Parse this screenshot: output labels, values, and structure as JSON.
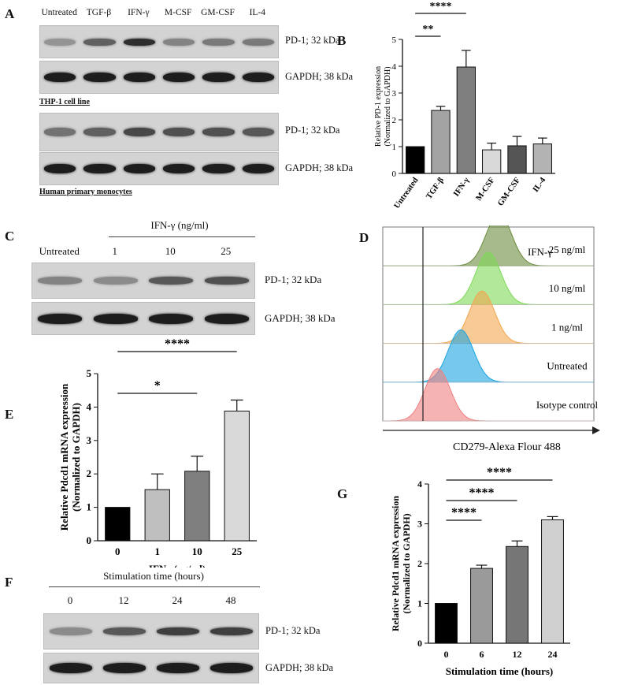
{
  "panels": {
    "A": "A",
    "B": "B",
    "C": "C",
    "D": "D",
    "E": "E",
    "F": "F",
    "G": "G"
  },
  "panelA": {
    "lanes": [
      "Untreated",
      "TGF-β",
      "IFN-γ",
      "M-CSF",
      "GM-CSF",
      "IL-4"
    ],
    "label1": "PD-1; 32 kDa",
    "label2": "GAPDH; 38 kDa",
    "label3": "PD-1; 32 kDa",
    "label4": "GAPDH; 38 kDa",
    "cell_line": "THP-1 cell line",
    "primary": "Human primary monocytes",
    "pd1_levels_thp1": [
      0.25,
      0.55,
      0.85,
      0.35,
      0.4,
      0.4
    ],
    "pd1_levels_primary": [
      0.45,
      0.55,
      0.7,
      0.65,
      0.65,
      0.6
    ]
  },
  "panelC": {
    "group_title": "IFN-γ (ng/ml)",
    "lanes": [
      "Untreated",
      "1",
      "10",
      "25"
    ],
    "label1": "PD-1; 32 kDa",
    "label2": "GAPDH; 38 kDa",
    "pd1_levels": [
      0.35,
      0.3,
      0.6,
      0.65
    ]
  },
  "panelD": {
    "title": "IFN-γ",
    "rows": [
      "25 ng/ml",
      "10 ng/ml",
      "1 ng/ml",
      "Untreated",
      "Isotype control"
    ],
    "colors": [
      "#6b8c3e",
      "#7ed957",
      "#f2a650",
      "#1aa3e0",
      "#f08080"
    ],
    "peak_positions": [
      0.55,
      0.5,
      0.47,
      0.37,
      0.26
    ],
    "xlabel": "CD279-Alexa  Flour 488"
  },
  "panelF": {
    "group_title": "Stimulation time (hours)",
    "lanes": [
      "0",
      "12",
      "24",
      "48"
    ],
    "label1": "PD-1; 32 kDa",
    "label2": "GAPDH; 38 kDa",
    "pd1_levels": [
      0.3,
      0.6,
      0.75,
      0.75
    ]
  },
  "chart_data": [
    {
      "id": "B",
      "type": "bar",
      "categories": [
        "Untreated",
        "TGF-β",
        "IFN-γ",
        "M-CSF",
        "GM-CSF",
        "IL-4"
      ],
      "values": [
        1,
        2.35,
        3.97,
        0.88,
        1.03,
        1.1
      ],
      "errors": [
        0,
        0.15,
        0.62,
        0.25,
        0.35,
        0.22
      ],
      "colors": [
        "#000000",
        "#a3a3a3",
        "#7f7f7f",
        "#d9d9d9",
        "#555555",
        "#b3b3b3"
      ],
      "ylabel": "Relative PD-1 expression",
      "ylabel2": "(Normalized to GAPDH)",
      "ylim": [
        0,
        5
      ],
      "yticks": [
        "0",
        "1",
        "2",
        "3",
        "4",
        "5"
      ],
      "significance": [
        {
          "from": 0,
          "to": 1,
          "label": "**"
        },
        {
          "from": 0,
          "to": 2,
          "label": "****"
        }
      ]
    },
    {
      "id": "E",
      "type": "bar",
      "categories": [
        "0",
        "1",
        "10",
        "25"
      ],
      "values": [
        1,
        1.53,
        2.08,
        3.88
      ],
      "errors": [
        0,
        0.47,
        0.45,
        0.33
      ],
      "colors": [
        "#000000",
        "#bfbfbf",
        "#7f7f7f",
        "#d9d9d9"
      ],
      "xlabel": "IFNγ (ng/ml)",
      "ylabel": "Relative Pdcd1 mRNA expression",
      "ylabel2": "(Normalized to GAPDH)",
      "ylim": [
        0,
        5
      ],
      "yticks": [
        "0",
        "1",
        "2",
        "3",
        "4",
        "5"
      ],
      "significance": [
        {
          "from": 0,
          "to": 2,
          "label": "*"
        },
        {
          "from": 0,
          "to": 3,
          "label": "****"
        }
      ]
    },
    {
      "id": "G",
      "type": "bar",
      "categories": [
        "0",
        "6",
        "12",
        "24"
      ],
      "values": [
        1,
        1.88,
        2.43,
        3.1
      ],
      "errors": [
        0,
        0.08,
        0.14,
        0.08
      ],
      "colors": [
        "#000000",
        "#9a9a9a",
        "#767676",
        "#d0d0d0"
      ],
      "xlabel": "Stimulation time (hours)",
      "ylabel": "Relative Pdcd1 mRNA expression",
      "ylabel2": "(Normalized to GAPDH)",
      "ylim": [
        0,
        4
      ],
      "yticks": [
        "0",
        "1",
        "2",
        "3",
        "4"
      ],
      "significance": [
        {
          "from": 0,
          "to": 1,
          "label": "****"
        },
        {
          "from": 0,
          "to": 2,
          "label": "****"
        },
        {
          "from": 0,
          "to": 3,
          "label": "****"
        }
      ]
    }
  ]
}
